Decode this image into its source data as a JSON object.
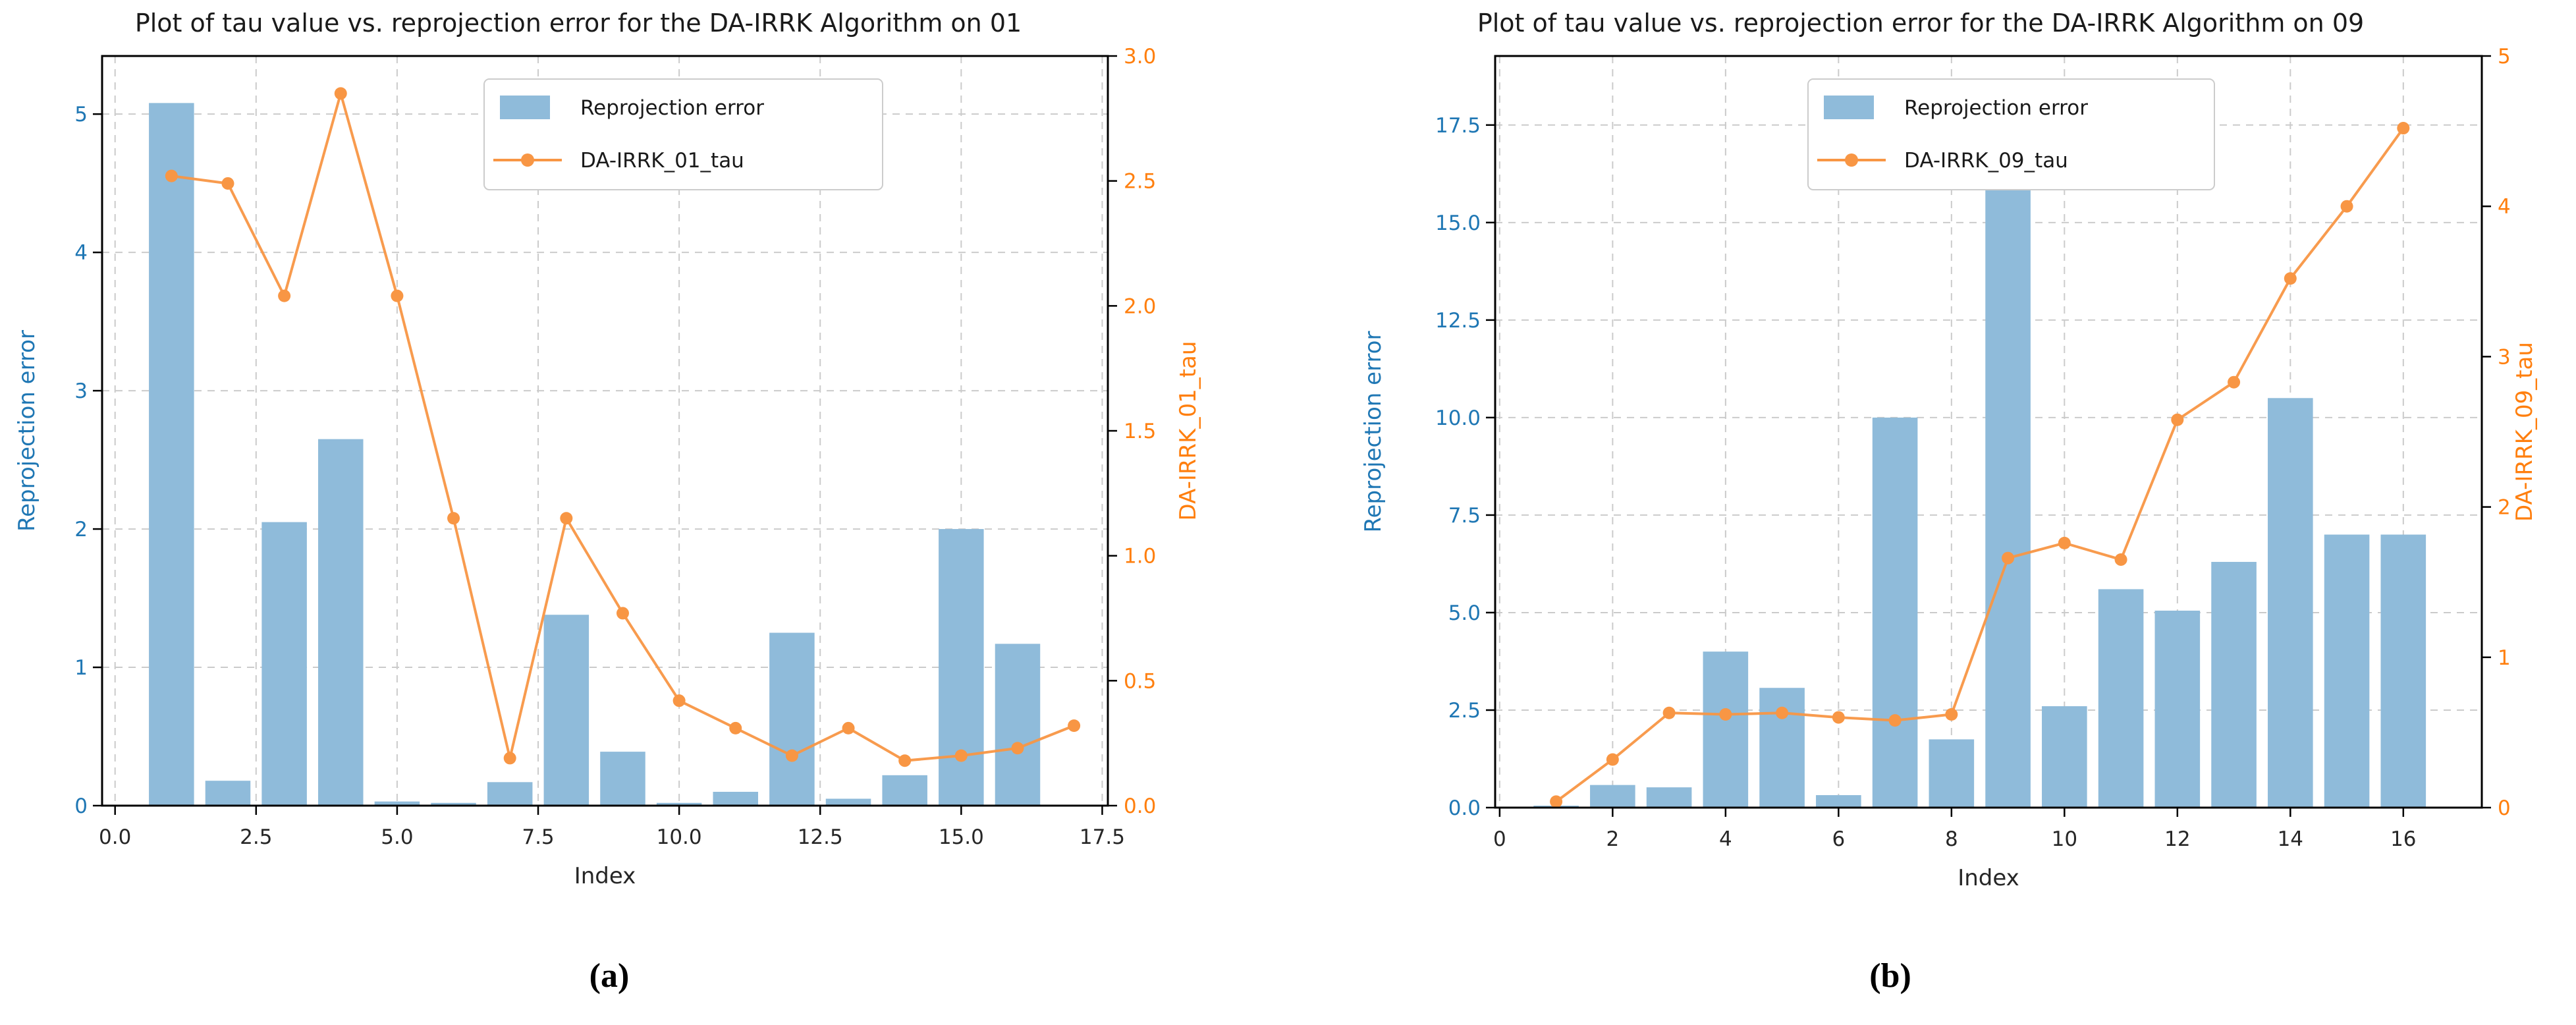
{
  "page": {
    "background": "#ffffff"
  },
  "colors": {
    "bar_fill": "#8fbbda",
    "line": "#f89644",
    "orange_label": "#ff7f0e",
    "blue_label": "#1f77b4",
    "tick_text": "#262626",
    "grid": "#cbcbcb",
    "spine": "#000000",
    "legend_border": "#cccccc",
    "legend_bg": "#ffffff"
  },
  "chart_data": [
    {
      "type": "bar+line",
      "title": "Plot of tau value vs. reprojection error for the DA-IRRK Algorithm on 01",
      "xlabel": "Index",
      "ylabel_left": "Reprojection error",
      "ylabel_right": "DA-IRRK_01_tau",
      "caption": "(a)",
      "legend": {
        "bar_label": "Reprojection error",
        "line_label": "DA-IRRK_01_tau"
      },
      "x": [
        1,
        2,
        3,
        4,
        5,
        6,
        7,
        8,
        9,
        10,
        11,
        12,
        13,
        14,
        15,
        16,
        17
      ],
      "series": [
        {
          "name": "Reprojection error",
          "type": "bar",
          "axis": "left",
          "values": [
            5.08,
            0.18,
            2.05,
            2.65,
            0.03,
            0.02,
            0.17,
            1.38,
            0.39,
            0.02,
            0.1,
            1.25,
            0.05,
            0.22,
            2.0,
            1.17,
            0.0
          ]
        },
        {
          "name": "DA-IRRK_01_tau",
          "type": "line",
          "axis": "right",
          "values": [
            2.52,
            2.49,
            2.04,
            2.85,
            2.04,
            1.15,
            0.19,
            1.15,
            0.77,
            0.42,
            0.31,
            0.2,
            0.31,
            0.18,
            0.2,
            0.23,
            0.32
          ]
        }
      ],
      "xticks": {
        "values": [
          0,
          2.5,
          5,
          7.5,
          10,
          12.5,
          15,
          17.5
        ],
        "labels": [
          "0.0",
          "2.5",
          "5.0",
          "7.5",
          "10.0",
          "12.5",
          "15.0",
          "17.5"
        ]
      },
      "yticks_left": {
        "values": [
          0,
          1,
          2,
          3,
          4,
          5
        ],
        "labels": [
          "0",
          "1",
          "2",
          "3",
          "4",
          "5"
        ]
      },
      "yticks_right": {
        "values": [
          0,
          0.5,
          1,
          1.5,
          2,
          2.5,
          3
        ],
        "labels": [
          "0.0",
          "0.5",
          "1.0",
          "1.5",
          "2.0",
          "2.5",
          "3.0"
        ]
      },
      "xlim": [
        -0.23,
        17.6
      ],
      "ylim_left": [
        0,
        5.42
      ],
      "ylim_right": [
        0,
        3.0
      ],
      "grid": true,
      "legend_position": "upper center"
    },
    {
      "type": "bar+line",
      "title": "Plot of tau value vs. reprojection error for the DA-IRRK Algorithm on 09",
      "xlabel": "Index",
      "ylabel_left": "Reprojection error",
      "ylabel_right": "DA-IRRK_09_tau",
      "caption": "(b)",
      "legend": {
        "bar_label": "Reprojection error",
        "line_label": "DA-IRRK_09_tau"
      },
      "x": [
        1,
        2,
        3,
        4,
        5,
        6,
        7,
        8,
        9,
        10,
        11,
        12,
        13,
        14,
        15,
        16
      ],
      "series": [
        {
          "name": "Reprojection error",
          "type": "bar",
          "axis": "left",
          "values": [
            0.05,
            0.58,
            0.52,
            4.0,
            3.07,
            0.32,
            10.0,
            1.75,
            18.2,
            2.6,
            5.6,
            5.05,
            6.3,
            10.5,
            7.0,
            7.0
          ]
        },
        {
          "name": "DA-IRRK_09_tau",
          "type": "line",
          "axis": "right",
          "values": [
            0.04,
            0.32,
            0.63,
            0.62,
            0.63,
            0.6,
            0.58,
            0.62,
            1.66,
            1.76,
            1.65,
            2.58,
            2.83,
            3.52,
            4.0,
            4.52
          ]
        }
      ],
      "xticks": {
        "values": [
          0,
          2,
          4,
          6,
          8,
          10,
          12,
          14,
          16
        ],
        "labels": [
          "0",
          "2",
          "4",
          "6",
          "8",
          "10",
          "12",
          "14",
          "16"
        ]
      },
      "yticks_left": {
        "values": [
          0,
          2.5,
          5,
          7.5,
          10,
          12.5,
          15,
          17.5
        ],
        "labels": [
          "0.0",
          "2.5",
          "5.0",
          "7.5",
          "10.0",
          "12.5",
          "15.0",
          "17.5"
        ]
      },
      "yticks_right": {
        "values": [
          0,
          1,
          2,
          3,
          4,
          5
        ],
        "labels": [
          "0",
          "1",
          "2",
          "3",
          "4",
          "5"
        ]
      },
      "xlim": [
        -0.08,
        17.39
      ],
      "ylim_left": [
        0,
        19.27
      ],
      "ylim_right": [
        0,
        5.0
      ],
      "grid": true,
      "legend_position": "upper center"
    }
  ]
}
